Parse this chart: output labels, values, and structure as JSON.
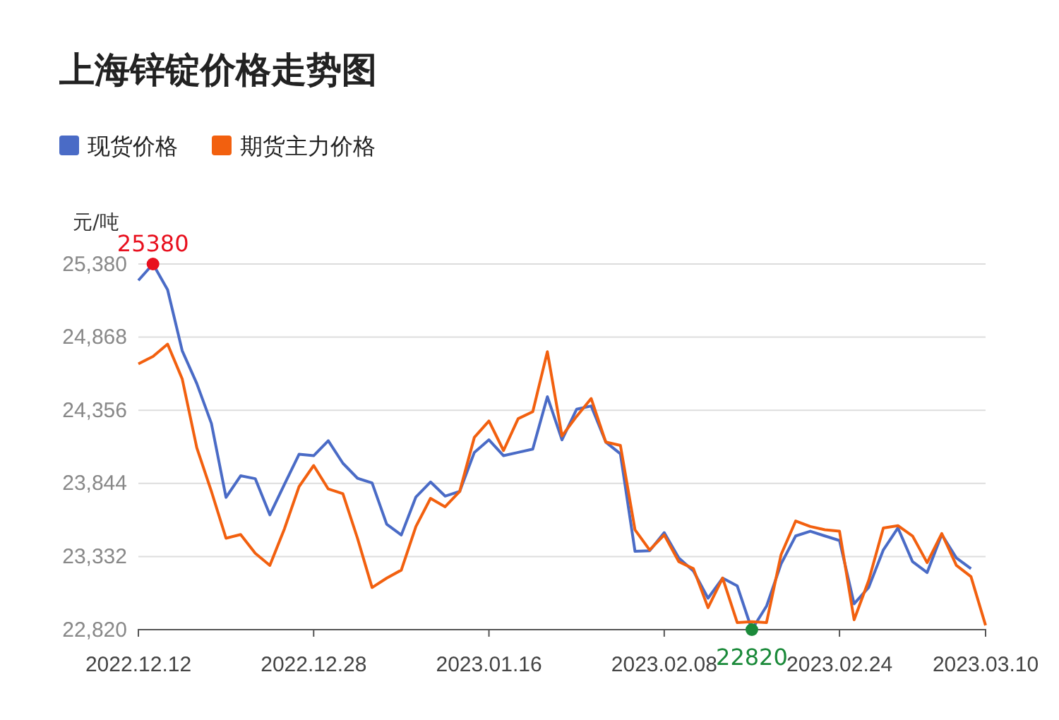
{
  "chart_data": {
    "type": "line",
    "title": "上海锌锭价格走势图",
    "ylabel": "元/吨",
    "categories": [
      "2022.12.12",
      null,
      null,
      null,
      null,
      null,
      null,
      null,
      null,
      null,
      null,
      null,
      "2022.12.28",
      null,
      null,
      null,
      null,
      null,
      null,
      null,
      null,
      null,
      null,
      null,
      "2023.01.16",
      null,
      null,
      null,
      null,
      null,
      null,
      null,
      null,
      null,
      null,
      null,
      "2023.02.08",
      null,
      null,
      null,
      null,
      null,
      null,
      null,
      null,
      null,
      null,
      null,
      "2023.02.24",
      null,
      null,
      null,
      null,
      null,
      null,
      null,
      null,
      null,
      "2023.03.10"
    ],
    "series": [
      {
        "name": "现货价格",
        "color": "#4a6bc6",
        "values": [
          25265,
          25380,
          25200,
          24773,
          24543,
          24264,
          23746,
          23897,
          23877,
          23624,
          23838,
          24048,
          24038,
          24143,
          23985,
          23880,
          23847,
          23558,
          23483,
          23749,
          23854,
          23755,
          23788,
          24061,
          24149,
          24038,
          24061,
          24084,
          24451,
          24149,
          24363,
          24386,
          24133,
          24051,
          23368,
          23372,
          23499,
          23322,
          23230,
          23040,
          23181,
          23126,
          22820,
          22984,
          23280,
          23476,
          23509,
          23476,
          23444,
          23001,
          23116,
          23378,
          23532,
          23296,
          23220,
          23486,
          23322,
          23247,
          null
        ]
      },
      {
        "name": "期货主力价格",
        "color": "#f2600f",
        "values": [
          24681,
          24733,
          24819,
          24576,
          24093,
          23788,
          23460,
          23486,
          23355,
          23270,
          23526,
          23821,
          23969,
          23805,
          23772,
          23460,
          23115,
          23181,
          23237,
          23542,
          23739,
          23680,
          23788,
          24166,
          24281,
          24074,
          24297,
          24346,
          24766,
          24176,
          24313,
          24438,
          24133,
          24110,
          23519,
          23378,
          23483,
          23296,
          23247,
          22974,
          23181,
          22869,
          22876,
          22869,
          23345,
          23581,
          23542,
          23519,
          23509,
          22889,
          23165,
          23532,
          23548,
          23476,
          23289,
          23493,
          23270,
          23191,
          22850
        ]
      }
    ],
    "ylim": [
      22820,
      25380
    ],
    "yticks": [
      {
        "value": 22820,
        "label": "22,820"
      },
      {
        "value": 23332,
        "label": "23,332"
      },
      {
        "value": 23844,
        "label": "23,844"
      },
      {
        "value": 24356,
        "label": "24,356"
      },
      {
        "value": 24868,
        "label": "24,868"
      },
      {
        "value": 25380,
        "label": "25,380"
      }
    ],
    "grid": "y",
    "legend": "top left",
    "marker": "none",
    "line_style": "solid",
    "annotations": [
      {
        "text": "25380",
        "y": 25380
      },
      {
        "text": "22820",
        "y": 22820
      }
    ]
  }
}
